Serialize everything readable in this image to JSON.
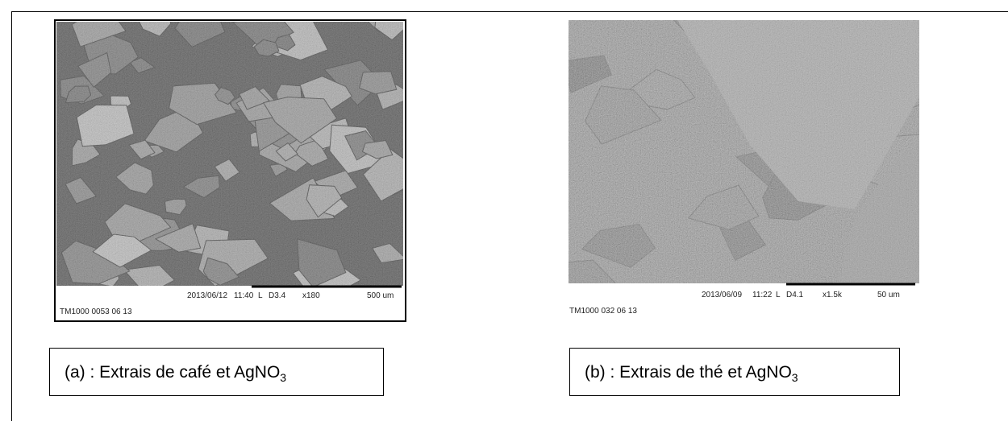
{
  "figures": [
    {
      "info": {
        "date": "2013/06/12",
        "time": "11:40",
        "mode": "L",
        "detector": "D3.4",
        "magnification": "x180",
        "scale": "500 um",
        "file": "TM1000 0053 06 13"
      },
      "caption": {
        "main": "(a) : Extrais de café et AgNO",
        "sub": "3"
      }
    },
    {
      "info": {
        "date": "2013/06/09",
        "time": "11:22",
        "mode": "L",
        "detector": "D4.1",
        "magnification": "x1.5k",
        "scale": "50 um",
        "file": "TM1000 032 06 13"
      },
      "caption": {
        "main": "(b) : Extrais de thé et AgNO",
        "sub": "3"
      }
    }
  ]
}
